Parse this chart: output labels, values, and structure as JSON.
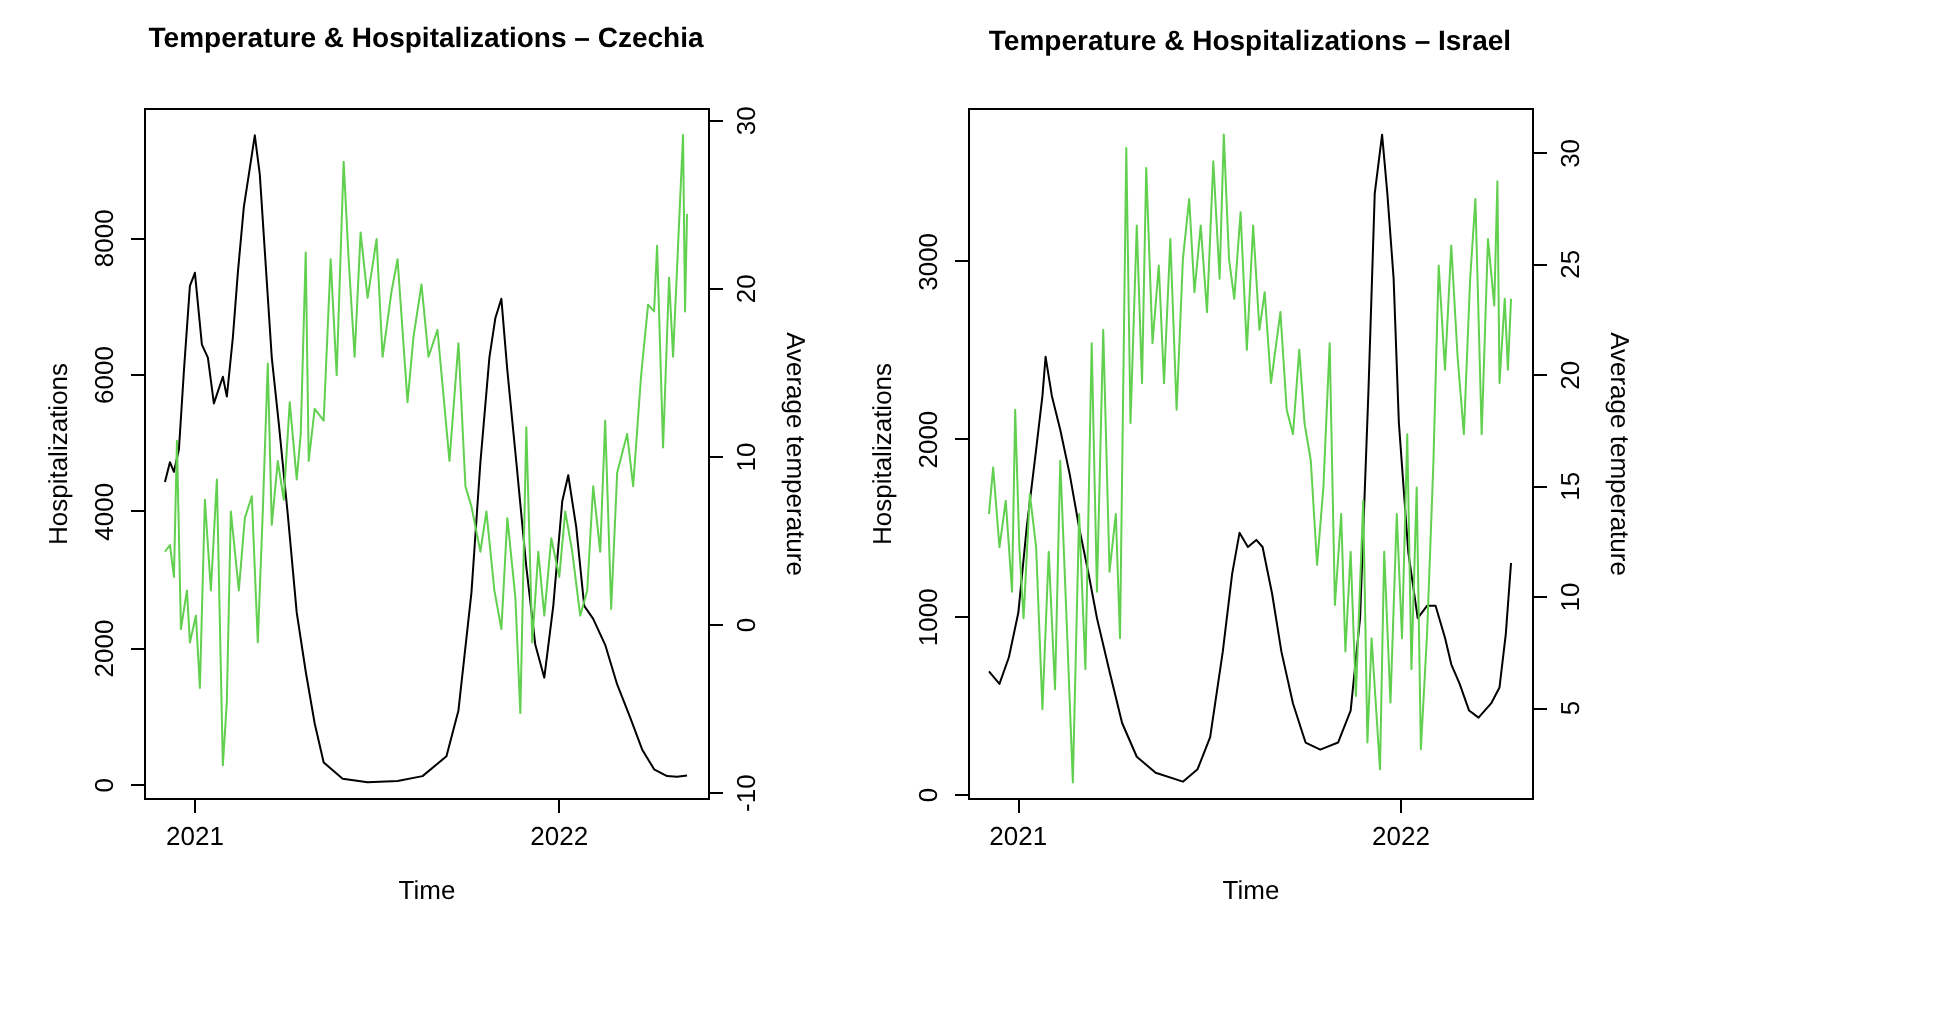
{
  "chart_data": [
    {
      "type": "line",
      "title": "Temperature & Hospitalizations – Czechia",
      "xlabel": "Time",
      "ylabel": "Hospitalizations",
      "y2label": "Average temperature",
      "xlim": [
        "2020-11-12",
        "2022-05-31"
      ],
      "xticks": [
        "2021",
        "2022"
      ],
      "ylim": [
        -200,
        9890
      ],
      "yticks": [
        0,
        2000,
        4000,
        6000,
        8000
      ],
      "y2lim": [
        -10.35,
        30.7
      ],
      "y2ticks": [
        -10,
        0,
        10,
        20,
        30
      ],
      "series": [
        {
          "color": "#000000",
          "axis": "y",
          "x": [
            "2020-12-03",
            "2020-12-08",
            "2020-12-12",
            "2020-12-17",
            "2020-12-22",
            "2020-12-28",
            "2021-01-02",
            "2021-01-09",
            "2021-01-15",
            "2021-01-21",
            "2021-01-30",
            "2021-02-03",
            "2021-02-09",
            "2021-02-14",
            "2021-02-20",
            "2021-02-26",
            "2021-03-03",
            "2021-03-08",
            "2021-03-14",
            "2021-03-20",
            "2021-03-27",
            "2021-04-05",
            "2021-04-14",
            "2021-04-23",
            "2021-05-02",
            "2021-05-11",
            "2021-05-30",
            "2021-06-24",
            "2021-07-24",
            "2021-08-18",
            "2021-09-11",
            "2021-09-23",
            "2021-10-06",
            "2021-10-15",
            "2021-10-24",
            "2021-10-30",
            "2021-11-05",
            "2021-11-11",
            "2021-11-20",
            "2021-11-30",
            "2021-12-09",
            "2021-12-18",
            "2021-12-27",
            "2022-01-05",
            "2022-01-11",
            "2022-01-19",
            "2022-01-27",
            "2022-02-05",
            "2022-02-17",
            "2022-03-01",
            "2022-03-14",
            "2022-03-26",
            "2022-04-07",
            "2022-04-20",
            "2022-04-30",
            "2022-05-10"
          ],
          "values": [
            4420,
            4710,
            4570,
            4900,
            6050,
            7290,
            7480,
            6430,
            6240,
            5570,
            5960,
            5670,
            6530,
            7480,
            8440,
            9010,
            9490,
            8920,
            7580,
            6240,
            5280,
            3950,
            2510,
            1650,
            890,
            320,
            80,
            30,
            50,
            120,
            410,
            1080,
            2800,
            4710,
            6240,
            6820,
            7100,
            6050,
            4710,
            3180,
            2040,
            1560,
            2610,
            4140,
            4520,
            3760,
            2610,
            2420,
            2040,
            1460,
            980,
            510,
            220,
            120,
            110,
            130
          ]
        },
        {
          "color": "#61d04f",
          "axis": "y2",
          "x": [
            "2020-12-03",
            "2020-12-08",
            "2020-12-12",
            "2020-12-15",
            "2020-12-19",
            "2020-12-25",
            "2020-12-28",
            "2021-01-03",
            "2021-01-07",
            "2021-01-12",
            "2021-01-18",
            "2021-01-24",
            "2021-01-30",
            "2021-02-03",
            "2021-02-07",
            "2021-02-15",
            "2021-02-21",
            "2021-02-28",
            "2021-03-06",
            "2021-03-11",
            "2021-03-16",
            "2021-03-20",
            "2021-03-26",
            "2021-04-01",
            "2021-04-07",
            "2021-04-14",
            "2021-04-18",
            "2021-04-23",
            "2021-04-26",
            "2021-05-02",
            "2021-05-11",
            "2021-05-18",
            "2021-05-24",
            "2021-05-31",
            "2021-06-05",
            "2021-06-11",
            "2021-06-17",
            "2021-06-24",
            "2021-07-03",
            "2021-07-09",
            "2021-07-18",
            "2021-07-24",
            "2021-08-03",
            "2021-08-09",
            "2021-08-17",
            "2021-08-24",
            "2021-09-02",
            "2021-09-08",
            "2021-09-14",
            "2021-09-23",
            "2021-09-30",
            "2021-10-06",
            "2021-10-15",
            "2021-10-21",
            "2021-10-29",
            "2021-11-05",
            "2021-11-11",
            "2021-11-19",
            "2021-11-24",
            "2021-11-30",
            "2021-12-06",
            "2021-12-12",
            "2021-12-18",
            "2021-12-25",
            "2022-01-02",
            "2022-01-08",
            "2022-01-15",
            "2022-01-23",
            "2022-01-30",
            "2022-02-05",
            "2022-02-12",
            "2022-02-17",
            "2022-02-23",
            "2022-03-01",
            "2022-03-11",
            "2022-03-17",
            "2022-03-25",
            "2022-04-01",
            "2022-04-07",
            "2022-04-10",
            "2022-04-16",
            "2022-04-22",
            "2022-04-26",
            "2022-05-01",
            "2022-05-06",
            "2022-05-08",
            "2022-05-10"
          ],
          "values": [
            4.3,
            4.7,
            2.8,
            10.9,
            -0.3,
            2.0,
            -1.1,
            0.5,
            -3.8,
            7.4,
            2.0,
            8.6,
            -8.4,
            -4.6,
            6.7,
            2.0,
            6.3,
            7.6,
            -1.1,
            6.7,
            15.5,
            5.9,
            9.7,
            7.4,
            13.2,
            8.6,
            11.3,
            22.1,
            9.7,
            12.8,
            12.1,
            21.7,
            14.8,
            27.5,
            21.7,
            15.9,
            23.3,
            19.4,
            22.9,
            15.9,
            19.8,
            21.7,
            13.2,
            17.1,
            20.2,
            15.9,
            17.5,
            13.6,
            9.7,
            16.7,
            8.2,
            7.0,
            4.3,
            6.7,
            2.0,
            -0.3,
            6.3,
            1.6,
            -5.3,
            11.7,
            -1.1,
            4.3,
            0.5,
            5.1,
            2.8,
            6.7,
            4.3,
            0.5,
            2.0,
            8.2,
            4.3,
            12.1,
            0.9,
            9.0,
            11.3,
            8.2,
            14.8,
            19.0,
            18.6,
            22.5,
            10.5,
            20.6,
            15.9,
            22.5,
            29.1,
            18.6,
            24.4
          ]
        }
      ]
    },
    {
      "type": "line",
      "title": "Temperature & Hospitalizations – Israel",
      "xlabel": "Time",
      "ylabel": "Hospitalizations",
      "y2label": "Average temperature",
      "xlim": [
        "2020-11-15",
        "2022-05-07"
      ],
      "xticks": [
        "2021",
        "2022"
      ],
      "ylim": [
        -22,
        3860
      ],
      "yticks": [
        0,
        1000,
        2000,
        3000
      ],
      "y2lim": [
        0.9,
        32.0
      ],
      "y2ticks": [
        5,
        10,
        15,
        20,
        25,
        30
      ],
      "series": [
        {
          "color": "#000000",
          "axis": "y",
          "x": [
            "2020-12-05",
            "2020-12-15",
            "2020-12-24",
            "2021-01-02",
            "2021-01-10",
            "2021-01-19",
            "2021-01-25",
            "2021-01-28",
            "2021-02-03",
            "2021-02-11",
            "2021-02-20",
            "2021-03-01",
            "2021-03-10",
            "2021-03-18",
            "2021-03-30",
            "2021-04-11",
            "2021-04-25",
            "2021-05-13",
            "2021-06-08",
            "2021-06-22",
            "2021-07-04",
            "2021-07-16",
            "2021-07-25",
            "2021-08-01",
            "2021-08-09",
            "2021-08-17",
            "2021-08-23",
            "2021-09-01",
            "2021-09-10",
            "2021-09-21",
            "2021-10-03",
            "2021-10-17",
            "2021-11-03",
            "2021-11-15",
            "2021-11-24",
            "2021-12-02",
            "2021-12-08",
            "2021-12-15",
            "2021-12-20",
            "2021-12-26",
            "2021-12-31",
            "2022-01-09",
            "2022-01-18",
            "2022-01-27",
            "2022-02-04",
            "2022-02-13",
            "2022-02-19",
            "2022-02-27",
            "2022-03-08",
            "2022-03-17",
            "2022-03-29",
            "2022-04-06",
            "2022-04-12",
            "2022-04-17"
          ],
          "values": [
            690,
            620,
            770,
            1020,
            1500,
            1940,
            2240,
            2460,
            2240,
            2050,
            1800,
            1500,
            1240,
            990,
            690,
            400,
            210,
            120,
            70,
            140,
            320,
            800,
            1240,
            1470,
            1390,
            1430,
            1390,
            1130,
            800,
            510,
            290,
            250,
            290,
            470,
            990,
            2270,
            3380,
            3710,
            3380,
            2900,
            2090,
            1360,
            990,
            1060,
            1060,
            880,
            730,
            620,
            470,
            430,
            510,
            600,
            900,
            1300
          ]
        },
        {
          "color": "#61d04f",
          "axis": "y2",
          "x": [
            "2020-12-05",
            "2020-12-09",
            "2020-12-15",
            "2020-12-21",
            "2020-12-27",
            "2020-12-30",
            "2021-01-03",
            "2021-01-07",
            "2021-01-13",
            "2021-01-19",
            "2021-01-25",
            "2021-01-31",
            "2021-02-06",
            "2021-02-11",
            "2021-02-17",
            "2021-02-23",
            "2021-03-01",
            "2021-03-07",
            "2021-03-13",
            "2021-03-18",
            "2021-03-24",
            "2021-03-30",
            "2021-04-05",
            "2021-04-09",
            "2021-04-15",
            "2021-04-19",
            "2021-04-25",
            "2021-04-30",
            "2021-05-04",
            "2021-05-10",
            "2021-05-16",
            "2021-05-21",
            "2021-05-27",
            "2021-06-02",
            "2021-06-08",
            "2021-06-14",
            "2021-06-19",
            "2021-06-25",
            "2021-07-01",
            "2021-07-07",
            "2021-07-13",
            "2021-07-17",
            "2021-07-22",
            "2021-07-27",
            "2021-08-02",
            "2021-08-08",
            "2021-08-14",
            "2021-08-20",
            "2021-08-25",
            "2021-08-31",
            "2021-09-09",
            "2021-09-15",
            "2021-09-21",
            "2021-09-27",
            "2021-10-02",
            "2021-10-08",
            "2021-10-14",
            "2021-10-20",
            "2021-10-26",
            "2021-10-31",
            "2021-11-06",
            "2021-11-10",
            "2021-11-15",
            "2021-11-20",
            "2021-11-27",
            "2021-12-01",
            "2021-12-05",
            "2021-12-13",
            "2021-12-17",
            "2021-12-23",
            "2021-12-29",
            "2022-01-03",
            "2022-01-08",
            "2022-01-12",
            "2022-01-17",
            "2022-01-21",
            "2022-01-27",
            "2022-02-02",
            "2022-02-07",
            "2022-02-13",
            "2022-02-19",
            "2022-02-25",
            "2022-03-03",
            "2022-03-09",
            "2022-03-14",
            "2022-03-20",
            "2022-03-26",
            "2022-04-01",
            "2022-04-04",
            "2022-04-06",
            "2022-04-11",
            "2022-04-14",
            "2022-04-17"
          ],
          "values": [
            13.7,
            15.8,
            12.2,
            14.3,
            10.2,
            18.4,
            12.2,
            9.0,
            14.6,
            12.2,
            4.9,
            12.0,
            5.8,
            16.1,
            9.0,
            1.6,
            13.7,
            6.7,
            21.4,
            10.2,
            22.0,
            11.1,
            13.7,
            8.1,
            30.2,
            17.8,
            26.7,
            19.6,
            29.3,
            21.4,
            24.9,
            19.6,
            26.1,
            18.4,
            25.2,
            27.9,
            23.7,
            26.7,
            22.8,
            29.6,
            24.3,
            30.8,
            25.2,
            23.4,
            27.3,
            21.1,
            26.7,
            22.0,
            23.7,
            19.6,
            22.8,
            18.4,
            17.3,
            21.1,
            17.8,
            16.1,
            11.4,
            14.9,
            21.4,
            9.6,
            13.7,
            7.5,
            12.0,
            5.5,
            14.3,
            3.4,
            8.1,
            2.2,
            12.0,
            5.2,
            13.7,
            8.1,
            17.3,
            6.7,
            14.9,
            3.1,
            8.4,
            16.1,
            24.9,
            20.2,
            25.8,
            20.8,
            17.3,
            24.3,
            27.9,
            17.3,
            26.1,
            23.1,
            28.7,
            19.6,
            23.4,
            20.2,
            23.4
          ]
        }
      ]
    }
  ]
}
